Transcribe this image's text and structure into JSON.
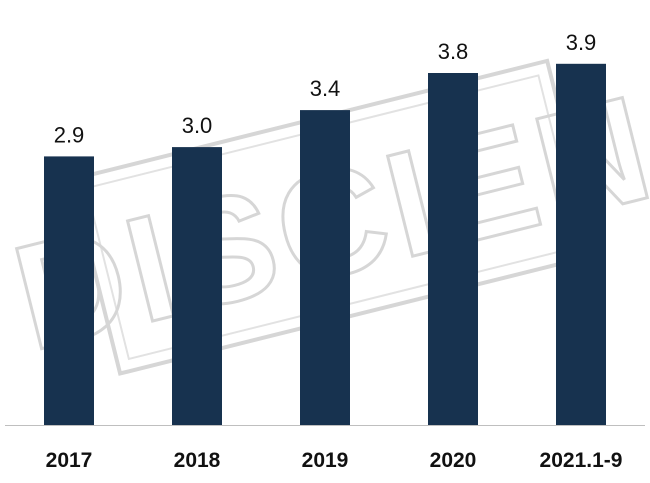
{
  "chart_data": {
    "type": "bar",
    "categories": [
      "2017",
      "2018",
      "2019",
      "2020",
      "2021.1-9"
    ],
    "values": [
      2.9,
      3.0,
      3.4,
      3.8,
      3.9
    ],
    "value_labels": [
      "2.9",
      "3.0",
      "3.4",
      "3.8",
      "3.9"
    ],
    "title": "",
    "xlabel": "",
    "ylabel": "",
    "ylim": [
      0,
      4.2
    ],
    "grid": false,
    "legend": "none",
    "bar_color": "#17324f",
    "axis_color": "#bfbfbf"
  },
  "watermark": {
    "text": "DISCIEN",
    "color": "#d6d6d6"
  }
}
